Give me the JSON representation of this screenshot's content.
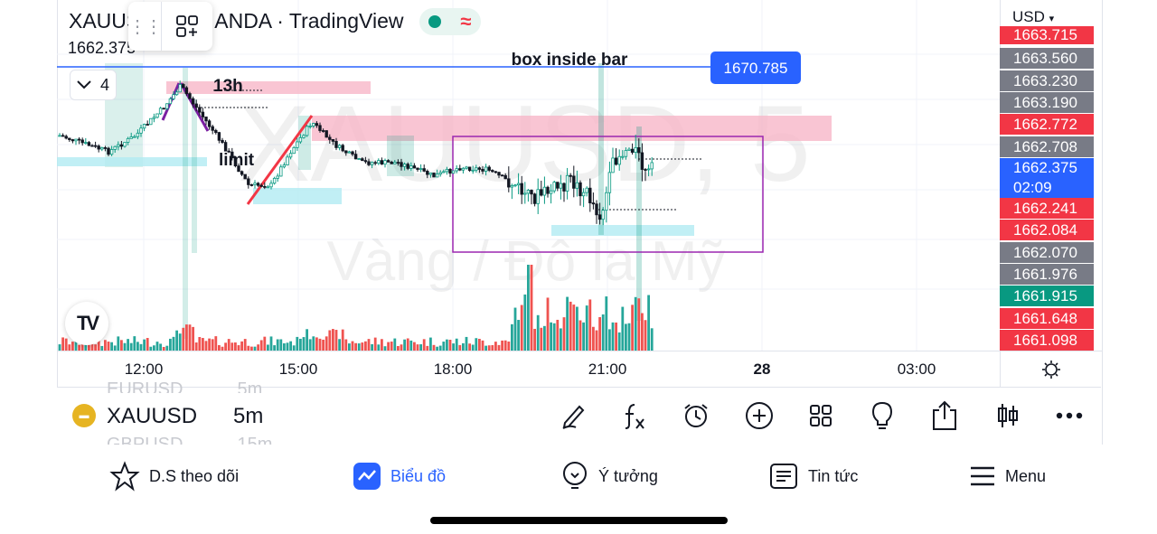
{
  "header": {
    "symbol_title_left": "XAUUS",
    "symbol_title_right": "ANDA · TradingView",
    "last_price": "1662.375",
    "collapse_count": "4"
  },
  "chart": {
    "watermark_symbol": "XAUUSD, 5",
    "watermark_desc": "Vàng / Đô la Mỹ",
    "annotations": {
      "box_label": "box inside bar",
      "label_13h": "13h",
      "label_limit": "limit"
    },
    "hline_price": "1670.785"
  },
  "price_scale": {
    "currency": "USD",
    "tags": [
      {
        "price": "1663.715",
        "color": "#f23645"
      },
      {
        "price": "1663.560",
        "color": "#787b86"
      },
      {
        "price": "1663.230",
        "color": "#787b86"
      },
      {
        "price": "1663.190",
        "color": "#787b86"
      },
      {
        "price": "1662.772",
        "color": "#f23645"
      },
      {
        "price": "1662.708",
        "color": "#787b86"
      },
      {
        "price": "1662.375",
        "color": "#2962ff"
      },
      {
        "price": "1662.241",
        "color": "#f23645"
      },
      {
        "price": "1662.084",
        "color": "#f23645"
      },
      {
        "price": "1662.070",
        "color": "#787b86"
      },
      {
        "price": "1661.976",
        "color": "#787b86"
      },
      {
        "price": "1661.915",
        "color": "#089981"
      },
      {
        "price": "1661.648",
        "color": "#f23645"
      },
      {
        "price": "1661.098",
        "color": "#f23645"
      }
    ],
    "countdown": "02:09"
  },
  "time_axis": {
    "labels": [
      "12:00",
      "15:00",
      "18:00",
      "21:00",
      "28",
      "03:00"
    ]
  },
  "symbol_bar": {
    "symbol": "XAUUSD",
    "interval": "5m",
    "ghost_above": "EURUSD",
    "ghost_above_int": "5m",
    "ghost_below": "GBPUSD",
    "ghost_below_int": "15m",
    "tools": [
      "pen-icon",
      "fx-icon",
      "alarm-icon",
      "plus-circle-icon",
      "grid-icon",
      "lightbulb-icon",
      "share-icon",
      "candle-icon",
      "more-icon"
    ]
  },
  "bottom_nav": {
    "items": [
      {
        "label": "D.S theo dõi"
      },
      {
        "label": "Biểu đồ"
      },
      {
        "label": "Ý tưởng"
      },
      {
        "label": "Tin tức"
      },
      {
        "label": "Menu"
      }
    ]
  },
  "colors": {
    "up": "#089981",
    "down": "#f23645",
    "accent": "#2962ff",
    "box": "#9c27b0",
    "pink_zone": "#f7b6c8",
    "cyan_zone": "#b2ebf2"
  }
}
